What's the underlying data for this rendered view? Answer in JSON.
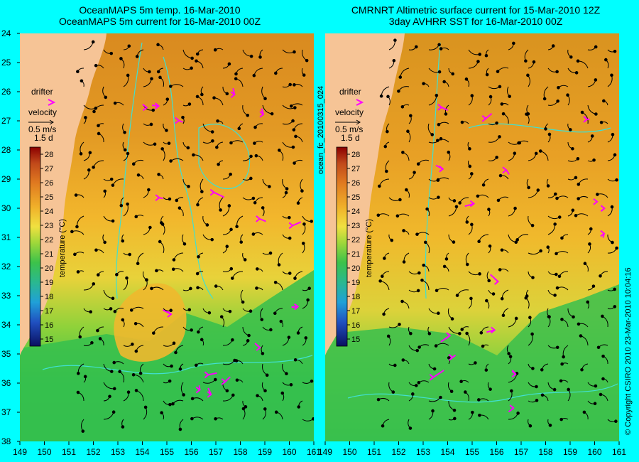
{
  "titles": {
    "left_line1": "OceanMAPS 5m temp. 16-Mar-2010",
    "left_line2": "OceanMAPS 5m current for 16-Mar-2010 00Z",
    "right_line1": "CMRNRT Altimetric surface current for 15-Mar-2010 12Z",
    "right_line2": "3day AVHRR SST for 16-Mar-2010 00Z"
  },
  "axes": {
    "lon_ticks": [
      "149",
      "150",
      "151",
      "152",
      "153",
      "154",
      "155",
      "156",
      "157",
      "158",
      "159",
      "160",
      "161"
    ],
    "lat_ticks": [
      "24",
      "25",
      "26",
      "27",
      "28",
      "29",
      "30",
      "31",
      "32",
      "33",
      "34",
      "35",
      "36",
      "37",
      "38"
    ]
  },
  "legend": {
    "drifter": "drifter",
    "velocity": "velocity",
    "speed_scale": "0.5 m/s",
    "time_scale": "1.5 d",
    "colorbar_title": "temperature (°C)",
    "colorbar_ticks": [
      "28",
      "27",
      "26",
      "25",
      "24",
      "23",
      "22",
      "21",
      "20",
      "19",
      "18",
      "17",
      "16",
      "15"
    ]
  },
  "side_texts": {
    "product_id": "ocean_fc_20100315_024",
    "copyright": "© Copyright CSIRO 2010  23-Mar-2010 10:04:16"
  },
  "colors": {
    "background": "#00ffff",
    "land": "#f6c496",
    "drifter": "#ff00ff",
    "contour": "#40e0d0"
  }
}
